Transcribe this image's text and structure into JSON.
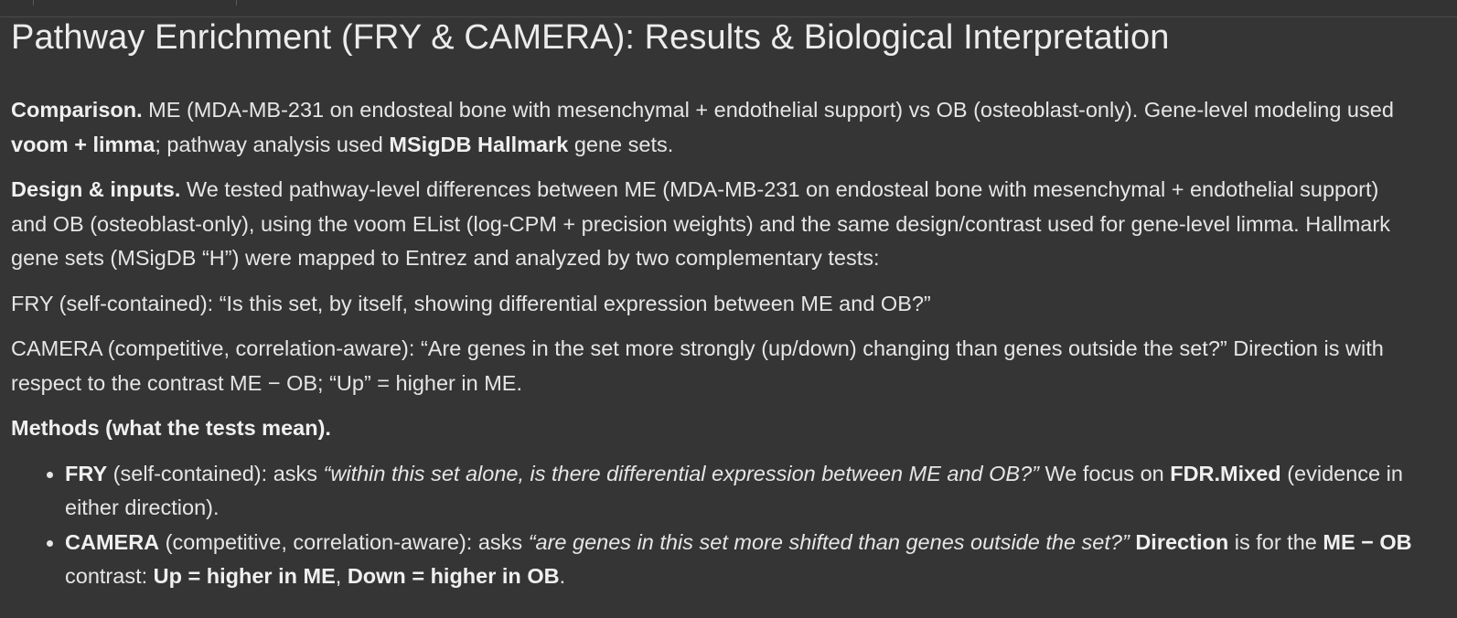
{
  "title": "Pathway Enrichment (FRY & CAMERA): Results & Biological Interpretation",
  "comparison": {
    "label": "Comparison.",
    "t1": " ME (MDA-MB-231 on endosteal bone with mesenchymal + endothelial support) vs OB (osteoblast-only). Gene-level modeling used ",
    "b1": "voom + limma",
    "t2": "; pathway analysis used ",
    "b2": "MSigDB Hallmark",
    "t3": " gene sets."
  },
  "design": {
    "label": "Design & inputs.",
    "text": " We tested pathway-level differences between ME (MDA-MB-231 on endosteal bone with mesenchymal + endothelial support) and OB (osteoblast-only), using the voom EList (log-CPM + precision weights) and the same design/contrast used for gene-level limma. Hallmark gene sets (MSigDB “H”) were mapped to Entrez and analyzed by two complementary tests:"
  },
  "fry_line": "FRY (self-contained): “Is this set, by itself, showing differential expression between ME and OB?”",
  "camera_line": "CAMERA (competitive, correlation-aware): “Are genes in the set more strongly (up/down) changing than genes outside the set?” Direction is with respect to the contrast ME − OB; “Up” = higher in ME.",
  "methods": {
    "heading": "Methods (what the tests mean).",
    "items": [
      {
        "b1": "FRY",
        "t1": " (self-contained): asks ",
        "i1": "“within this set alone, is there differential expression between ME and OB?”",
        "t2": " We focus on ",
        "b2": "FDR.Mixed",
        "t3": " (evidence in either direction)."
      },
      {
        "b1": "CAMERA",
        "t1": " (competitive, correlation-aware): asks ",
        "i1": "“are genes in this set more shifted than genes outside the set?”",
        "t2": " ",
        "b2": "Direction",
        "t3": " is for the ",
        "b3": "ME − OB",
        "t4": " contrast: ",
        "b4": "Up = higher in ME",
        "t5": ", ",
        "b5": "Down = higher in OB",
        "t6": "."
      }
    ]
  }
}
